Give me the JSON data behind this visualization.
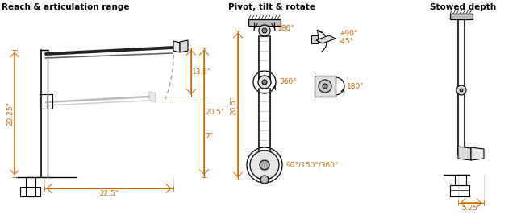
{
  "title_left": "Reach & articulation range",
  "title_mid": "Pivot, tilt & rotate",
  "title_right": "Stowed depth",
  "dim_color": "#cc6600",
  "line_color": "#000000",
  "gray_color": "#999999",
  "light_gray": "#cccccc",
  "bg_color": "#ffffff",
  "s1_height": "20.25\"",
  "s1_reach1": "13.5\"",
  "s1_reach2": "20.5\"",
  "s1_base": "7\"",
  "s1_horiz": "22.5\"",
  "s2_top": "180°",
  "s2_mid": "360°",
  "s2_base": "90°/150°/360°",
  "s2_tilt_pos": "+90°",
  "s2_tilt_neg": "-45°",
  "s2_vesa": "180°",
  "s3_depth": "5.25\"",
  "title_fs": 7.5,
  "dim_fs": 6.5,
  "label_fs": 6.5
}
